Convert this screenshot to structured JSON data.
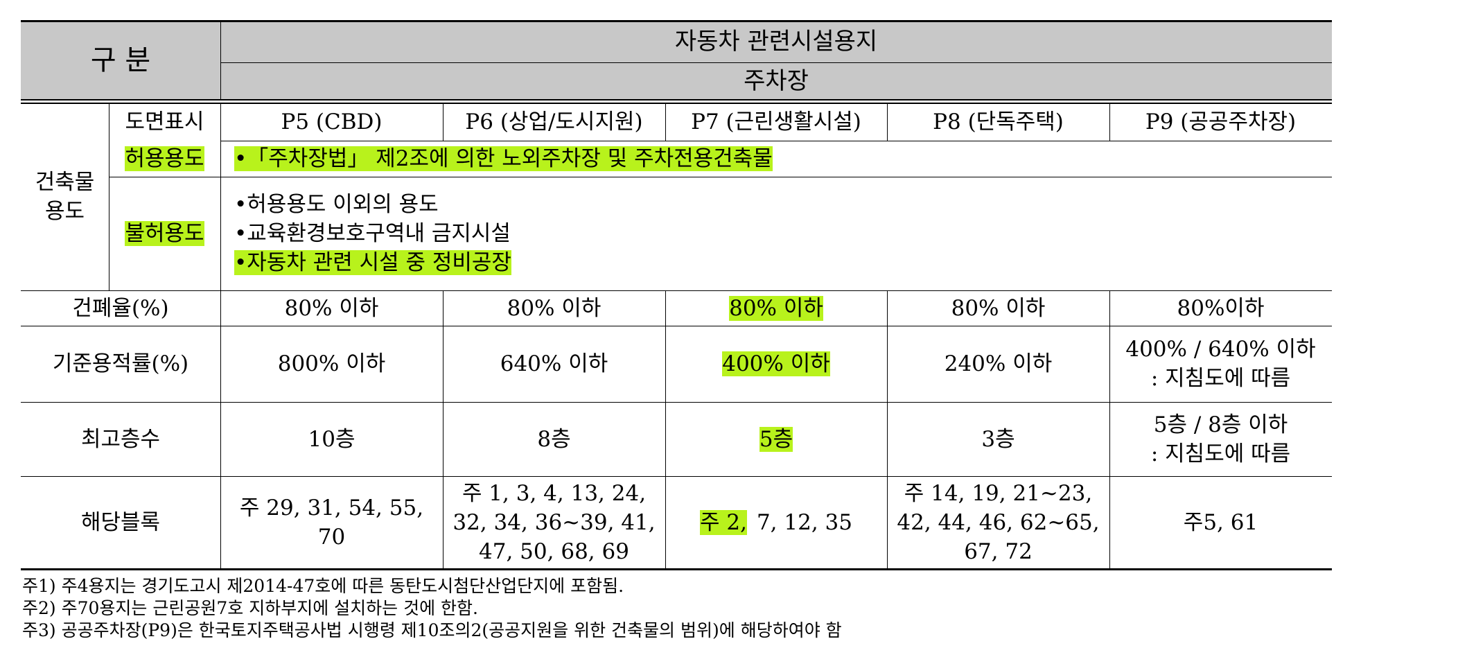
{
  "header": {
    "corner": "구 분",
    "group": "자동차 관련시설용지",
    "subgroup": "주차장"
  },
  "use": {
    "label": [
      "건축물",
      "용도"
    ],
    "map_label": "도면표시",
    "codes": [
      "P5 (CBD)",
      "P6 (상업/도시지원)",
      "P7 (근린생활시설)",
      "P8 (단독주택)",
      "P9 (공공주차장)"
    ],
    "allowed_label": "허용용도",
    "allowed": "•「주차장법」 제2조에 의한 노외주차장 및 주차전용건축물",
    "forbidden_label": "불허용도",
    "forbidden": [
      "•허용용도 이외의 용도",
      "•교육환경보호구역내 금지시설",
      "•자동차 관련 시설 중 정비공장"
    ]
  },
  "rows": [
    {
      "label": "건폐율(%)",
      "cells": [
        [
          "80% 이하"
        ],
        [
          "80% 이하"
        ],
        [
          "80% 이하"
        ],
        [
          "80% 이하"
        ],
        [
          "80%이하"
        ]
      ]
    },
    {
      "label": "기준용적률(%)",
      "cells": [
        [
          "800% 이하"
        ],
        [
          "640% 이하"
        ],
        [
          "400% 이하"
        ],
        [
          "240% 이하"
        ],
        [
          "400% / 640% 이하",
          ": 지침도에 따름"
        ]
      ]
    },
    {
      "label": "최고층수",
      "cells": [
        [
          "10층"
        ],
        [
          "8층"
        ],
        [
          "5층"
        ],
        [
          "3층"
        ],
        [
          "5층 / 8층 이하",
          ": 지침도에 따름"
        ]
      ]
    },
    {
      "label": "해당블록",
      "cells": [
        [
          "주 29, 31, 54, 55,",
          "70"
        ],
        [
          "주 1, 3, 4, 13, 24,",
          "32, 34, 36~39, 41,",
          "47, 50, 68, 69"
        ],
        [
          "주 2,",
          "7, 12, 35"
        ],
        [
          "주 14, 19, 21~23,",
          "42, 44, 46, 62~65,",
          "67, 72"
        ],
        [
          "주5, 61"
        ]
      ]
    }
  ],
  "notes": [
    "주1) 주4용지는 경기도고시 제2014-47호에 따른 동탄도시첨단산업단지에 포함됨.",
    "주2) 주70용지는 근린공원7호 지하부지에 설치하는 것에 한함.",
    "주3) 공공주차장(P9)은 한국토지주택공사법 시행령 제10조의2(공공지원을 위한 건축물의 범위)에 해당하여야 함"
  ]
}
